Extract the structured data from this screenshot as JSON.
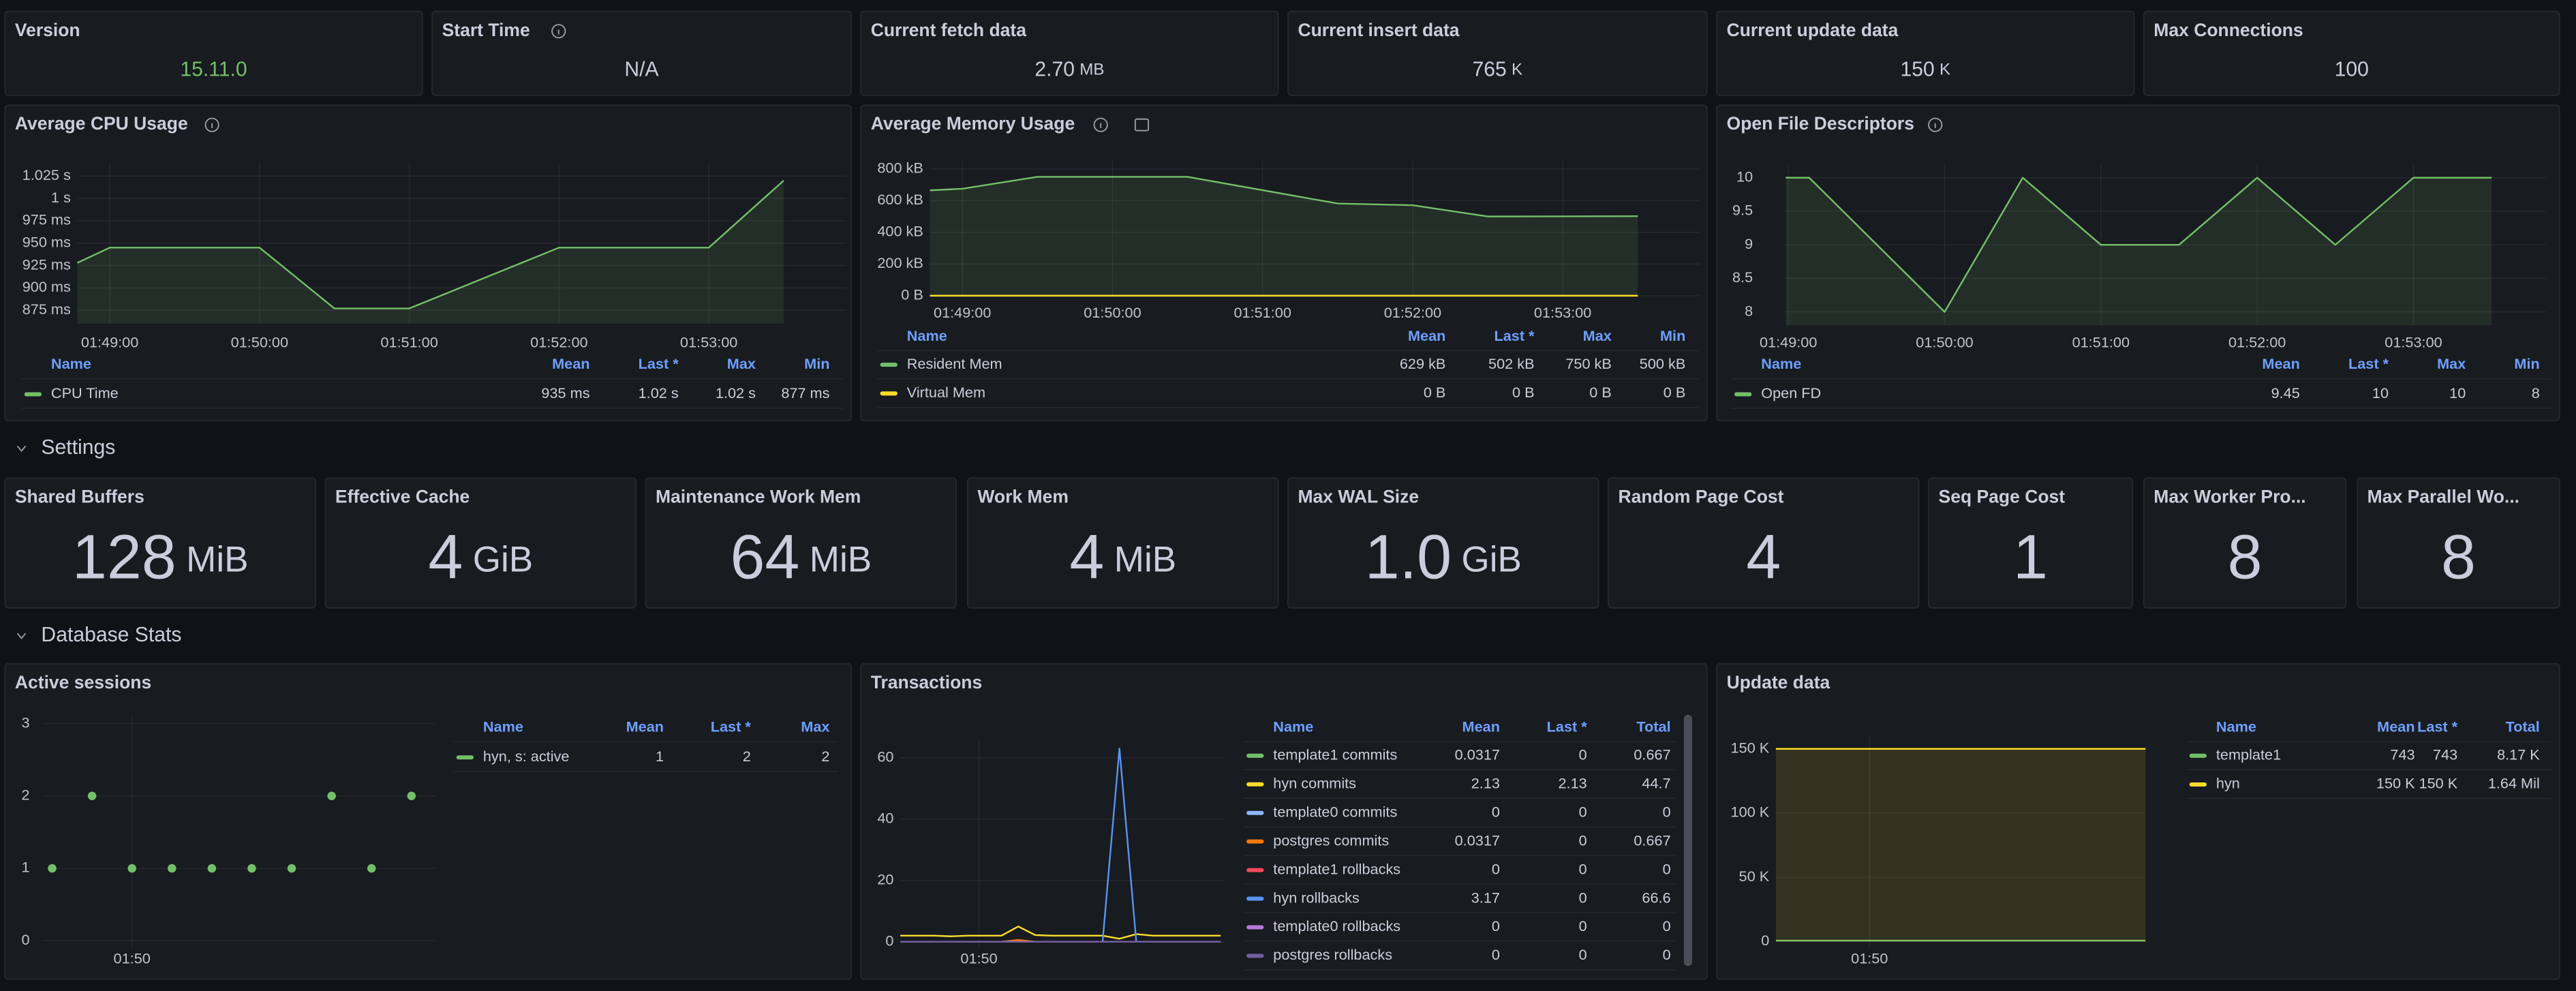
{
  "top_stats": [
    {
      "title": "Version",
      "value": "15.11.0",
      "color": "#73bf69"
    },
    {
      "title": "Start Time",
      "value": "N/A"
    },
    {
      "title": "Current fetch data",
      "value": "2.70",
      "unit": "MB"
    },
    {
      "title": "Current insert data",
      "value": "765",
      "unit": "K"
    },
    {
      "title": "Current update data",
      "value": "150",
      "unit": "K"
    },
    {
      "title": "Max Connections",
      "value": "100"
    }
  ],
  "top_panels": [
    {
      "title": "Average CPU Usage",
      "type": "line",
      "grid": true,
      "xlim": [
        "01:48:47",
        "01:53:55"
      ],
      "xticks": [
        "01:49:00",
        "01:50:00",
        "01:51:00",
        "01:52:00",
        "01:53:00"
      ],
      "ylim": [
        860,
        1040
      ],
      "yticks": [
        {
          "value": 875,
          "label": "875 ms"
        },
        {
          "value": 900,
          "label": "900 ms"
        },
        {
          "value": 925,
          "label": "925 ms"
        },
        {
          "value": 950,
          "label": "950 ms"
        },
        {
          "value": 975,
          "label": "975 ms"
        },
        {
          "value": 1000,
          "label": "1 s"
        },
        {
          "value": 1025,
          "label": "1.025 s"
        }
      ],
      "x": [
        "01:48:47",
        "01:49:00",
        "01:50:00",
        "01:50:30",
        "01:51:00",
        "01:52:00",
        "01:53:00",
        "01:53:30"
      ],
      "series": [
        {
          "name": "CPU Time",
          "color": "#73bf69",
          "fill": true,
          "values": [
            928,
            945,
            945,
            877,
            877,
            945,
            945,
            1020
          ]
        }
      ],
      "legend_position": "bottom",
      "legend_columns": [
        "Name",
        "Mean",
        "Last *",
        "Max",
        "Min"
      ],
      "legend_values": [
        [
          "935 ms",
          "1.02 s",
          "1.02 s",
          "877 ms"
        ]
      ]
    },
    {
      "title": "Average Memory Usage",
      "type": "line",
      "grid": true,
      "xlim": [
        "01:48:47",
        "01:53:55"
      ],
      "xticks": [
        "01:49:00",
        "01:50:00",
        "01:51:00",
        "01:52:00",
        "01:53:00"
      ],
      "ylim": [
        0,
        850
      ],
      "yticks": [
        {
          "value": 0,
          "label": "0 B"
        },
        {
          "value": 200,
          "label": "200 kB"
        },
        {
          "value": 400,
          "label": "400 kB"
        },
        {
          "value": 600,
          "label": "600 kB"
        },
        {
          "value": 800,
          "label": "800 kB"
        }
      ],
      "x": [
        "01:48:47",
        "01:49:00",
        "01:49:30",
        "01:50:30",
        "01:51:30",
        "01:52:00",
        "01:52:30",
        "01:53:30"
      ],
      "series": [
        {
          "name": "Resident Mem",
          "color": "#73bf69",
          "fill": true,
          "values": [
            665,
            675,
            750,
            750,
            582,
            571,
            500,
            502
          ]
        },
        {
          "name": "Virtual Mem",
          "color": "#fade2a",
          "values": [
            0,
            0,
            0,
            0,
            0,
            0,
            0,
            0
          ]
        }
      ],
      "legend_position": "bottom",
      "legend_columns": [
        "Name",
        "Mean",
        "Last *",
        "Max",
        "Min"
      ],
      "legend_values": [
        [
          "629 kB",
          "502 kB",
          "750 kB",
          "500 kB"
        ],
        [
          "0 B",
          "0 B",
          "0 B",
          "0 B"
        ]
      ]
    },
    {
      "title": "Open File Descriptors",
      "type": "line",
      "grid": true,
      "xlim": [
        "01:48:59",
        "01:53:51"
      ],
      "xticks": [
        "01:49:00",
        "01:50:00",
        "01:51:00",
        "01:52:00",
        "01:53:00"
      ],
      "ylim": [
        7.8,
        10.2
      ],
      "yticks": [
        8,
        8.5,
        9,
        9.5,
        10
      ],
      "x": [
        "01:48:59",
        "01:49:08",
        "01:50:00",
        "01:50:30",
        "01:51:00",
        "01:51:30",
        "01:52:00",
        "01:52:30",
        "01:53:00",
        "01:53:30"
      ],
      "series": [
        {
          "name": "Open FD",
          "color": "#73bf69",
          "fill": true,
          "values": [
            10,
            10,
            8,
            10,
            9,
            9,
            10,
            9,
            10,
            10
          ]
        }
      ],
      "legend_position": "bottom",
      "legend_columns": [
        "Name",
        "Mean",
        "Last *",
        "Max",
        "Min"
      ],
      "legend_values": [
        [
          "9.45",
          "10",
          "10",
          "8"
        ]
      ]
    }
  ],
  "settings": {
    "title": "Settings",
    "stats": [
      {
        "title": "Shared Buffers",
        "value": "128",
        "unit": "MiB"
      },
      {
        "title": "Effective Cache",
        "value": "4",
        "unit": "GiB"
      },
      {
        "title": "Maintenance Work Mem",
        "value": "64",
        "unit": "MiB"
      },
      {
        "title": "Work Mem",
        "value": "4",
        "unit": "MiB"
      },
      {
        "title": "Max WAL Size",
        "value": "1.0",
        "unit": "GiB"
      },
      {
        "title": "Random Page Cost",
        "value": "4"
      },
      {
        "title": "Seq Page Cost",
        "value": "1"
      },
      {
        "title": "Max Worker Pro...",
        "value": "8"
      },
      {
        "title": "Max Parallel Wo...",
        "value": "8"
      }
    ]
  },
  "database_stats": {
    "title": "Database Stats",
    "panels": [
      {
        "title": "Active sessions",
        "type": "scatter",
        "grid": true,
        "xlim": [
          "01:48:53",
          "01:53:48"
        ],
        "xticks": [
          {
            "value": "01:50:00",
            "label": "01:50"
          }
        ],
        "ylim": [
          -0.1,
          3.1
        ],
        "yticks": [
          0,
          1,
          2,
          3
        ],
        "x": [
          "01:49:00",
          "01:49:30",
          "01:50:00",
          "01:50:30",
          "01:51:00",
          "01:51:30",
          "01:52:00",
          "01:52:30",
          "01:53:00",
          "01:53:30"
        ],
        "series": [
          {
            "name": "hyn, s: active",
            "color": "#73bf69",
            "values": [
              1,
              2,
              1,
              1,
              1,
              1,
              1,
              2,
              1,
              2
            ]
          }
        ],
        "legend_position": "right",
        "legend_columns": [
          "Name",
          "Mean",
          "Last *",
          "Max"
        ],
        "legend_values": [
          [
            "1",
            "2",
            "2"
          ]
        ]
      },
      {
        "title": "Transactions",
        "type": "line",
        "grid": true,
        "xlim": [
          "01:48:50",
          "01:53:38"
        ],
        "xticks": [
          {
            "value": "01:50:00",
            "label": "01:50"
          }
        ],
        "ylim": [
          -2,
          66
        ],
        "yticks": [
          0,
          20,
          40,
          60
        ],
        "x": [
          "01:48:50",
          "01:49:05",
          "01:49:20",
          "01:49:35",
          "01:49:50",
          "01:50:05",
          "01:50:20",
          "01:50:35",
          "01:50:50",
          "01:51:05",
          "01:51:20",
          "01:51:35",
          "01:51:50",
          "01:52:05",
          "01:52:20",
          "01:52:35",
          "01:52:50",
          "01:53:05",
          "01:53:20",
          "01:53:35"
        ],
        "series": [
          {
            "name": "template1 commits",
            "color": "#73bf69",
            "values": [
              0,
              0,
              0,
              0,
              0,
              0,
              0,
              0.6,
              0,
              0,
              0,
              0,
              0,
              0,
              0,
              0,
              0,
              0,
              0,
              0
            ]
          },
          {
            "name": "hyn commits",
            "color": "#fade2a",
            "values": [
              2,
              2,
              2,
              1.8,
              2,
              2,
              2,
              5,
              2.2,
              2,
              2,
              2,
              2,
              1,
              2.5,
              2,
              2,
              2,
              2,
              2
            ]
          },
          {
            "name": "template0 commits",
            "color": "#8ab8ff",
            "values": [
              0,
              0,
              0,
              0,
              0,
              0,
              0,
              0,
              0,
              0,
              0,
              0,
              0,
              0,
              0,
              0,
              0,
              0,
              0,
              0
            ]
          },
          {
            "name": "postgres commits",
            "color": "#ff780a",
            "values": [
              0,
              0,
              0,
              0,
              0,
              0,
              0,
              0.6,
              0,
              0,
              0,
              0,
              0,
              0,
              0,
              0,
              0,
              0,
              0,
              0
            ]
          },
          {
            "name": "template1 rollbacks",
            "color": "#f2495c",
            "values": [
              0,
              0,
              0,
              0,
              0,
              0,
              0,
              0,
              0,
              0,
              0,
              0,
              0,
              0,
              0,
              0,
              0,
              0,
              0,
              0
            ]
          },
          {
            "name": "hyn rollbacks",
            "color": "#5794f2",
            "values": [
              0,
              0,
              0,
              0,
              0,
              0,
              0,
              0,
              0,
              0,
              0,
              0,
              0,
              63,
              0,
              0,
              0,
              0,
              0,
              0
            ]
          },
          {
            "name": "template0 rollbacks",
            "color": "#b877d9",
            "values": [
              0,
              0,
              0,
              0,
              0,
              0,
              0,
              0,
              0,
              0,
              0,
              0,
              0,
              0,
              0,
              0,
              0,
              0,
              0,
              0
            ]
          },
          {
            "name": "postgres rollbacks",
            "color": "#705da0",
            "values": [
              0,
              0,
              0,
              0,
              0,
              0,
              0,
              0,
              0,
              0,
              0,
              0,
              0,
              0,
              0,
              0,
              0,
              0,
              0,
              0
            ]
          }
        ],
        "legend_position": "right",
        "legend_columns": [
          "Name",
          "Mean",
          "Last *",
          "Total"
        ],
        "legend_values": [
          [
            "0.0317",
            "0",
            "0.667"
          ],
          [
            "2.13",
            "2.13",
            "44.7"
          ],
          [
            "0",
            "0",
            "0"
          ],
          [
            "0.0317",
            "0",
            "0.667"
          ],
          [
            "0",
            "0",
            "0"
          ],
          [
            "3.17",
            "0",
            "66.6"
          ],
          [
            "0",
            "0",
            "0"
          ],
          [
            "0",
            "0",
            "0"
          ]
        ]
      },
      {
        "title": "Update data",
        "type": "line",
        "grid": true,
        "xlim": [
          "01:48:44",
          "01:53:44"
        ],
        "xticks": [
          {
            "value": "01:50:00",
            "label": "01:50"
          }
        ],
        "ylim": [
          -5000,
          160000
        ],
        "yticks": [
          0,
          {
            "value": 50000,
            "label": "50 K"
          },
          {
            "value": 100000,
            "label": "100 K"
          },
          {
            "value": 150000,
            "label": "150 K"
          }
        ],
        "x": [
          "01:48:44",
          "01:49:14",
          "01:49:44",
          "01:50:14",
          "01:50:44",
          "01:51:14",
          "01:51:44",
          "01:52:14",
          "01:52:44",
          "01:53:14",
          "01:53:44"
        ],
        "series": [
          {
            "name": "template1",
            "color": "#73bf69",
            "values": [
              743,
              743,
              743,
              743,
              743,
              743,
              743,
              743,
              743,
              743,
              743
            ]
          },
          {
            "name": "hyn",
            "color": "#fade2a",
            "fill": true,
            "values": [
              150000,
              150000,
              150000,
              150000,
              150000,
              150000,
              150000,
              150000,
              150000,
              150000,
              150000
            ]
          }
        ],
        "legend_position": "right",
        "legend_columns": [
          "Name",
          "Mean",
          "Last *",
          "Total"
        ],
        "legend_values": [
          [
            "743",
            "743",
            "8.17 K"
          ],
          [
            "150 K",
            "150 K",
            "1.64 Mil"
          ]
        ]
      }
    ]
  }
}
